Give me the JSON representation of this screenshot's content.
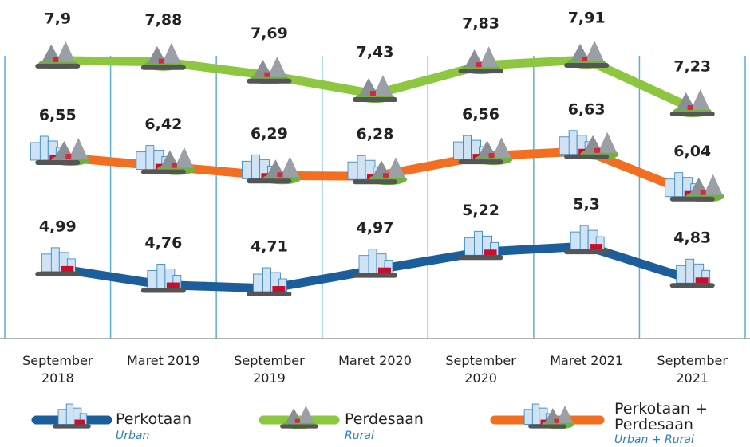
{
  "chart_data": {
    "type": "line",
    "categories": [
      "September 2018",
      "Maret 2019",
      "September 2019",
      "Maret 2020",
      "September 2020",
      "Maret 2021",
      "September 2021"
    ],
    "series": [
      {
        "name": "Perkotaan",
        "name_en": "Urban",
        "color": "#1b5e9b",
        "icon": "urban",
        "values": [
          4.99,
          4.76,
          4.71,
          4.97,
          5.22,
          5.3,
          4.83
        ],
        "value_labels": [
          "4,99",
          "4,76",
          "4,71",
          "4,97",
          "5,22",
          "5,3",
          "4,83"
        ]
      },
      {
        "name": "Perdesaan",
        "name_en": "Rural",
        "color": "#8dc63f",
        "icon": "rural",
        "values": [
          7.9,
          7.88,
          7.69,
          7.43,
          7.83,
          7.91,
          7.23
        ],
        "value_labels": [
          "7,9",
          "7,88",
          "7,69",
          "7,43",
          "7,83",
          "7,91",
          "7,23"
        ]
      },
      {
        "name": "Perkotaan + Perdesaan",
        "name_en": "Urban + Rural",
        "color": "#f26f21",
        "icon": "both",
        "values": [
          6.55,
          6.42,
          6.29,
          6.28,
          6.56,
          6.63,
          6.04
        ],
        "value_labels": [
          "6,55",
          "6,42",
          "6,29",
          "6,28",
          "6,56",
          "6,63",
          "6,04"
        ]
      }
    ]
  }
}
